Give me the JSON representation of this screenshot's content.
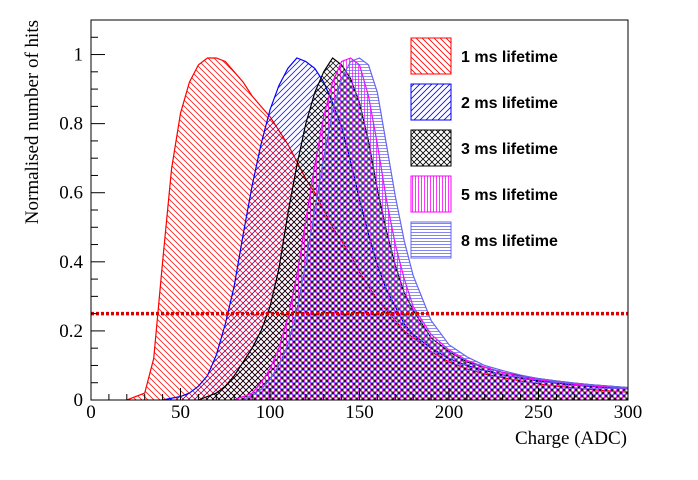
{
  "chart_data": {
    "type": "area",
    "xlabel": "Charge (ADC)",
    "ylabel": "Normalised number of hits",
    "xlim": [
      0,
      300
    ],
    "ylim": [
      0,
      1.1
    ],
    "x_ticks": [
      "0",
      "50",
      "100",
      "150",
      "200",
      "250",
      "300"
    ],
    "y_ticks": [
      "0",
      "0.2",
      "0.4",
      "0.6",
      "0.8",
      "1"
    ],
    "grid": false,
    "legend_position": "top-right",
    "threshold_line": {
      "y": 0.25,
      "color": "#dd0000",
      "style": "dotted"
    },
    "series": [
      {
        "name": "1 ms lifetime",
        "color": "#ff0000",
        "hatch": "diagonal-down",
        "x": [
          20,
          30,
          35,
          40,
          45,
          50,
          55,
          60,
          65,
          70,
          75,
          80,
          85,
          90,
          95,
          100,
          105,
          110,
          115,
          120,
          125,
          130,
          135,
          140,
          145,
          150,
          155,
          160,
          165,
          170,
          175,
          180,
          185,
          190,
          200,
          210,
          220,
          230,
          240,
          250,
          260,
          270,
          280,
          290,
          300
        ],
        "values": [
          0,
          0.02,
          0.12,
          0.4,
          0.67,
          0.83,
          0.92,
          0.97,
          0.99,
          0.99,
          0.98,
          0.95,
          0.92,
          0.88,
          0.85,
          0.82,
          0.78,
          0.74,
          0.69,
          0.64,
          0.6,
          0.55,
          0.5,
          0.46,
          0.42,
          0.37,
          0.33,
          0.29,
          0.26,
          0.23,
          0.2,
          0.18,
          0.16,
          0.14,
          0.11,
          0.09,
          0.075,
          0.065,
          0.055,
          0.047,
          0.04,
          0.035,
          0.03,
          0.026,
          0.023
        ]
      },
      {
        "name": "2 ms lifetime",
        "color": "#0000ff",
        "hatch": "diagonal-up",
        "x": [
          40,
          50,
          55,
          60,
          65,
          70,
          75,
          80,
          85,
          90,
          95,
          100,
          105,
          110,
          115,
          120,
          125,
          130,
          135,
          140,
          145,
          150,
          155,
          160,
          165,
          170,
          175,
          180,
          190,
          200,
          210,
          220,
          230,
          240,
          250,
          260,
          270,
          280,
          290,
          300
        ],
        "values": [
          0,
          0.01,
          0.02,
          0.04,
          0.07,
          0.13,
          0.22,
          0.33,
          0.48,
          0.62,
          0.74,
          0.84,
          0.91,
          0.96,
          0.99,
          0.98,
          0.96,
          0.92,
          0.86,
          0.79,
          0.69,
          0.58,
          0.48,
          0.39,
          0.32,
          0.27,
          0.22,
          0.19,
          0.15,
          0.12,
          0.1,
          0.085,
          0.073,
          0.063,
          0.055,
          0.049,
          0.043,
          0.039,
          0.035,
          0.032
        ]
      },
      {
        "name": "3 ms lifetime",
        "color": "#000000",
        "hatch": "cross",
        "x": [
          60,
          70,
          75,
          80,
          85,
          90,
          95,
          100,
          105,
          110,
          115,
          120,
          125,
          130,
          135,
          140,
          145,
          150,
          155,
          160,
          165,
          170,
          175,
          180,
          190,
          200,
          210,
          220,
          230,
          240,
          250,
          260,
          270,
          280,
          290,
          300
        ],
        "values": [
          0,
          0.02,
          0.04,
          0.07,
          0.11,
          0.15,
          0.2,
          0.27,
          0.38,
          0.54,
          0.68,
          0.8,
          0.89,
          0.95,
          0.99,
          0.97,
          0.93,
          0.86,
          0.75,
          0.61,
          0.49,
          0.39,
          0.31,
          0.26,
          0.18,
          0.14,
          0.11,
          0.095,
          0.08,
          0.07,
          0.062,
          0.055,
          0.049,
          0.044,
          0.04,
          0.036
        ]
      },
      {
        "name": "5 ms lifetime",
        "color": "#ff00ff",
        "hatch": "vertical",
        "x": [
          80,
          90,
          95,
          100,
          105,
          110,
          115,
          120,
          125,
          130,
          135,
          140,
          145,
          150,
          155,
          160,
          165,
          170,
          175,
          180,
          190,
          200,
          210,
          220,
          230,
          240,
          250,
          260,
          270,
          280,
          290,
          300
        ],
        "values": [
          0,
          0.02,
          0.05,
          0.09,
          0.15,
          0.24,
          0.36,
          0.52,
          0.68,
          0.82,
          0.92,
          0.98,
          0.99,
          0.97,
          0.88,
          0.74,
          0.58,
          0.45,
          0.35,
          0.27,
          0.19,
          0.145,
          0.115,
          0.095,
          0.08,
          0.068,
          0.059,
          0.052,
          0.046,
          0.041,
          0.037,
          0.033
        ]
      },
      {
        "name": "8 ms lifetime",
        "color": "#6666ee",
        "hatch": "horizontal",
        "x": [
          85,
          95,
          100,
          105,
          110,
          115,
          120,
          125,
          130,
          135,
          140,
          145,
          150,
          155,
          160,
          165,
          170,
          175,
          180,
          190,
          200,
          210,
          220,
          230,
          240,
          250,
          260,
          270,
          280,
          290,
          300
        ],
        "values": [
          0,
          0.03,
          0.06,
          0.1,
          0.16,
          0.26,
          0.4,
          0.55,
          0.7,
          0.84,
          0.93,
          0.98,
          0.99,
          0.97,
          0.89,
          0.74,
          0.59,
          0.46,
          0.36,
          0.23,
          0.16,
          0.125,
          0.1,
          0.085,
          0.072,
          0.062,
          0.055,
          0.049,
          0.044,
          0.04,
          0.036
        ]
      }
    ]
  }
}
